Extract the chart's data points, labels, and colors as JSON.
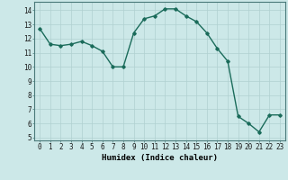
{
  "x": [
    0,
    1,
    2,
    3,
    4,
    5,
    6,
    7,
    8,
    9,
    10,
    11,
    12,
    13,
    14,
    15,
    16,
    17,
    18,
    19,
    20,
    21,
    22,
    23
  ],
  "y": [
    12.7,
    11.6,
    11.5,
    11.6,
    11.8,
    11.5,
    11.1,
    10.0,
    10.0,
    12.4,
    13.4,
    13.6,
    14.1,
    14.1,
    13.6,
    13.2,
    12.4,
    11.3,
    10.4,
    6.5,
    6.0,
    5.4,
    6.6,
    6.6
  ],
  "line_color": "#1a6b5a",
  "marker": "D",
  "marker_size": 1.8,
  "bg_color": "#cce8e8",
  "grid_color": "#b0d0d0",
  "xlabel": "Humidex (Indice chaleur)",
  "ylim": [
    4.8,
    14.6
  ],
  "xlim": [
    -0.5,
    23.5
  ],
  "yticks": [
    5,
    6,
    7,
    8,
    9,
    10,
    11,
    12,
    13,
    14
  ],
  "xticks": [
    0,
    1,
    2,
    3,
    4,
    5,
    6,
    7,
    8,
    9,
    10,
    11,
    12,
    13,
    14,
    15,
    16,
    17,
    18,
    19,
    20,
    21,
    22,
    23
  ],
  "xlabel_fontsize": 6.5,
  "tick_fontsize": 5.5,
  "line_width": 1.0
}
